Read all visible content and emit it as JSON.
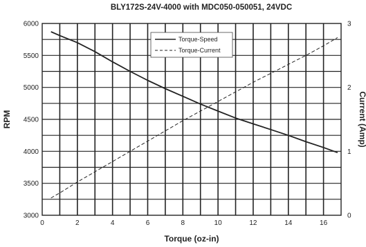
{
  "chart_data": {
    "type": "line",
    "title": "BLY172S-24V-4000 with MDC050-050051, 24VDC",
    "xlabel": "Torque (oz-in)",
    "ylabel": "RPM",
    "y2label": "Current (Amp)",
    "xlim": [
      0,
      17
    ],
    "ylim": [
      3000,
      6000
    ],
    "y2lim": [
      0,
      3
    ],
    "x_ticks": [
      0,
      2,
      4,
      6,
      8,
      10,
      12,
      14,
      16
    ],
    "y_ticks": [
      3000,
      3500,
      4000,
      4500,
      5000,
      5500,
      6000
    ],
    "y2_ticks": [
      0,
      1,
      2,
      3
    ],
    "grid": true,
    "legend_position": "top-center",
    "series": [
      {
        "name": "Torque-Speed",
        "axis": "left",
        "style": "solid",
        "x": [
          0.5,
          1,
          2,
          3,
          4,
          5,
          6,
          7,
          8,
          9,
          10,
          11,
          12,
          13,
          14,
          15,
          16,
          16.8
        ],
        "y": [
          5870,
          5810,
          5700,
          5560,
          5400,
          5250,
          5110,
          4980,
          4860,
          4740,
          4630,
          4520,
          4430,
          4340,
          4250,
          4150,
          4060,
          3980
        ]
      },
      {
        "name": "Torque-Current",
        "axis": "right",
        "style": "dashed",
        "x": [
          0.5,
          1,
          2,
          3,
          4,
          5,
          6,
          7,
          8,
          9,
          10,
          11,
          12,
          13,
          14,
          15,
          16,
          16.8
        ],
        "y": [
          0.27,
          0.35,
          0.52,
          0.68,
          0.84,
          1.0,
          1.16,
          1.32,
          1.48,
          1.63,
          1.78,
          1.93,
          2.08,
          2.22,
          2.36,
          2.5,
          2.65,
          2.78
        ]
      }
    ]
  }
}
